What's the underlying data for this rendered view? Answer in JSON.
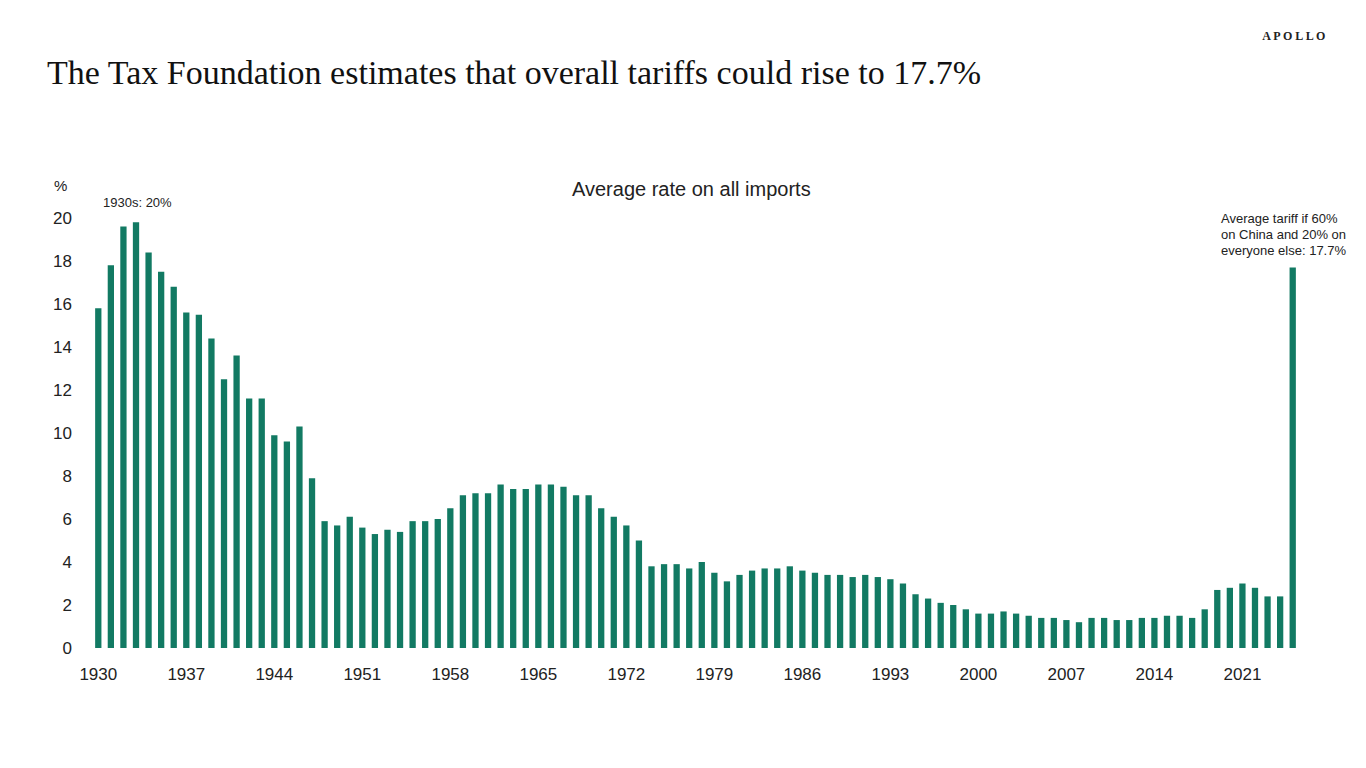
{
  "chart_data": {
    "type": "bar",
    "title": "The Tax Foundation estimates that overall tariffs could rise to 17.7%",
    "subtitle": "Average rate on all imports",
    "brand": "APOLLO",
    "y_label": "%",
    "annotations": [
      {
        "text": [
          "1930s: 20%"
        ]
      },
      {
        "text": [
          "Average tariff if 60%",
          "on China and 20% on",
          "everyone else: 17.7%"
        ]
      }
    ],
    "categories": [
      "1930",
      null,
      null,
      null,
      null,
      null,
      null,
      "1937",
      null,
      null,
      null,
      null,
      null,
      null,
      "1944",
      null,
      null,
      null,
      null,
      null,
      null,
      "1951",
      null,
      null,
      null,
      null,
      null,
      null,
      "1958",
      null,
      null,
      null,
      null,
      null,
      null,
      "1965",
      null,
      null,
      null,
      null,
      null,
      null,
      "1972",
      null,
      null,
      null,
      null,
      null,
      null,
      "1979",
      null,
      null,
      null,
      null,
      null,
      null,
      "1986",
      null,
      null,
      null,
      null,
      null,
      null,
      "1993",
      null,
      null,
      null,
      null,
      null,
      null,
      "2000",
      null,
      null,
      null,
      null,
      null,
      null,
      "2007",
      null,
      null,
      null,
      null,
      null,
      null,
      "2014",
      null,
      null,
      null,
      null,
      null,
      null,
      "2021",
      null,
      null,
      null,
      null
    ],
    "values": [
      15.8,
      17.8,
      19.6,
      19.8,
      18.4,
      17.5,
      16.8,
      15.6,
      15.5,
      14.4,
      12.5,
      13.6,
      11.6,
      11.6,
      9.9,
      9.6,
      10.3,
      7.9,
      5.9,
      5.7,
      6.1,
      5.6,
      5.3,
      5.5,
      5.4,
      5.9,
      5.9,
      6.0,
      6.5,
      7.1,
      7.2,
      7.2,
      7.6,
      7.4,
      7.4,
      7.6,
      7.6,
      7.5,
      7.1,
      7.1,
      6.5,
      6.1,
      5.7,
      5.0,
      3.8,
      3.9,
      3.9,
      3.7,
      4.0,
      3.5,
      3.1,
      3.4,
      3.6,
      3.7,
      3.7,
      3.8,
      3.6,
      3.5,
      3.4,
      3.4,
      3.3,
      3.4,
      3.3,
      3.2,
      3.0,
      2.5,
      2.3,
      2.1,
      2.0,
      1.8,
      1.6,
      1.6,
      1.7,
      1.6,
      1.5,
      1.4,
      1.4,
      1.3,
      1.2,
      1.4,
      1.4,
      1.3,
      1.3,
      1.4,
      1.4,
      1.5,
      1.5,
      1.4,
      1.8,
      2.7,
      2.8,
      3.0,
      2.8,
      2.4,
      2.4,
      17.7
    ],
    "color": "#127a63",
    "ylim": [
      0,
      20
    ],
    "yticks": [
      0,
      2,
      4,
      6,
      8,
      10,
      12,
      14,
      16,
      18,
      20
    ],
    "grid": false
  }
}
